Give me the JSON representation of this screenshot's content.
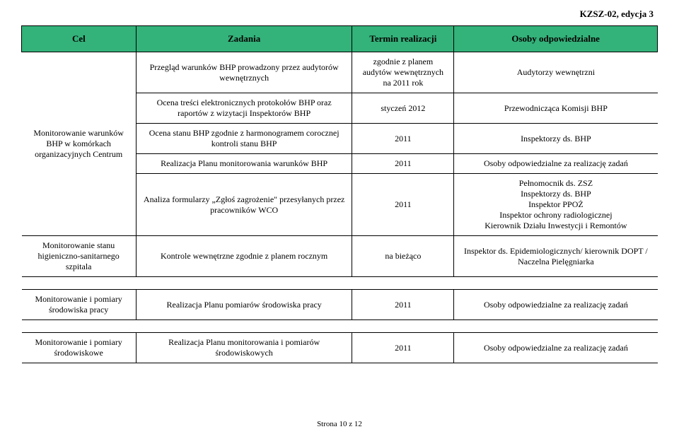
{
  "doc": {
    "header": "KZSZ-02, edycja 3",
    "footer": "Strona 10 z 12"
  },
  "thead": {
    "cel": "Cel",
    "zadania": "Zadania",
    "termin": "Termin realizacji",
    "osoby": "Osoby odpowiedzialne"
  },
  "colors": {
    "header_bg": "#33b27a",
    "border": "#000000",
    "text": "#000000",
    "bg": "#ffffff"
  },
  "font": {
    "family": "Times New Roman",
    "size_body": 12,
    "size_header": 13
  },
  "rows": {
    "r1": {
      "zad": "Przegląd warunków BHP prowadzony przez audytorów wewnętrznych",
      "term": "zgodnie z planem audytów wewnętrznych na 2011 rok",
      "osoby": "Audytorzy wewnętrzni"
    },
    "r2": {
      "zad": "Ocena treści elektronicznych protokołów BHP oraz raportów z wizytacji Inspektorów BHP",
      "term": "styczeń 2012",
      "osoby": "Przewodnicząca Komisji BHP"
    },
    "r3": {
      "cel": "Monitorowanie warunków BHP w komórkach organizacyjnych Centrum",
      "zad": "Ocena stanu BHP zgodnie z harmonogramem corocznej kontroli stanu BHP",
      "term": "2011",
      "osoby": "Inspektorzy ds. BHP"
    },
    "r4": {
      "zad": "Realizacja Planu monitorowania warunków BHP",
      "term": "2011",
      "osoby": "Osoby odpowiedzialne za realizację zadań"
    },
    "r5": {
      "zad": "Analiza formularzy „Zgłoś zagrożenie\" przesyłanych przez pracowników WCO",
      "term": "2011",
      "osoby": "Pełnomocnik ds. ZSZ\nInspektorzy ds. BHP\nInspektor PPOŻ\nInspektor ochrony radiologicznej\nKierownik Działu Inwestycji i Remontów"
    },
    "r6": {
      "cel": "Monitorowanie stanu higieniczno-sanitarnego szpitala",
      "zad": "Kontrole wewnętrzne zgodnie z planem rocznym",
      "term": "na bieżąco",
      "osoby": "Inspektor ds. Epidemiologicznych/ kierownik DOPT / Naczelna Pielęgniarka"
    },
    "r7": {
      "cel": "Monitorowanie i pomiary środowiska pracy",
      "zad": "Realizacja Planu pomiarów środowiska pracy",
      "term": "2011",
      "osoby": "Osoby odpowiedzialne za realizację zadań"
    },
    "r8": {
      "cel": "Monitorowanie i pomiary środowiskowe",
      "zad": "Realizacja Planu monitorowania i pomiarów środowiskowych",
      "term": "2011",
      "osoby": "Osoby odpowiedzialne za realizację zadań"
    }
  }
}
